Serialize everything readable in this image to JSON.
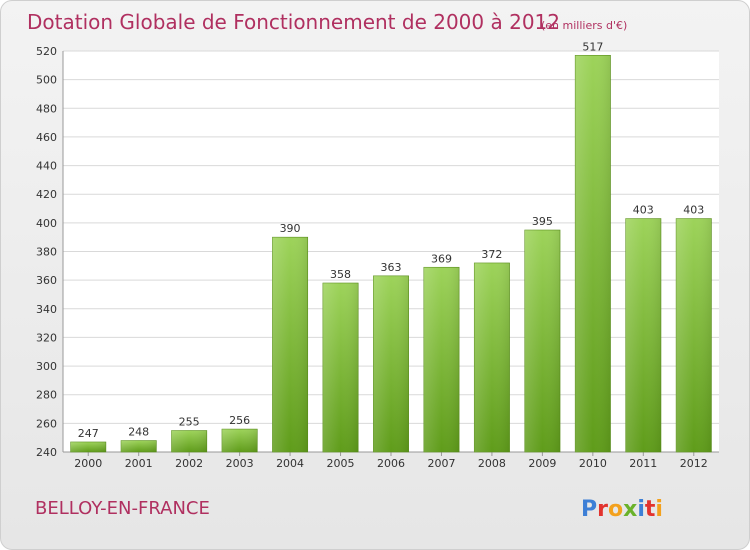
{
  "chart_data": {
    "type": "bar",
    "title": "Dotation Globale de Fonctionnement de 2000 à 2012",
    "subtitle": "(en milliers d'€)",
    "categories": [
      "2000",
      "2001",
      "2002",
      "2003",
      "2004",
      "2005",
      "2006",
      "2007",
      "2008",
      "2009",
      "2010",
      "2011",
      "2012"
    ],
    "values": [
      247,
      248,
      255,
      256,
      390,
      358,
      363,
      369,
      372,
      395,
      517,
      403,
      403
    ],
    "ylim": [
      240,
      520
    ],
    "yticks": [
      240,
      260,
      280,
      300,
      320,
      340,
      360,
      380,
      400,
      420,
      440,
      460,
      480,
      500,
      520
    ],
    "grid": true,
    "bar_color_top": "#9dd35a",
    "bar_color_bottom": "#5f9c1a"
  },
  "footer": {
    "town": "BELLOY-EN-FRANCE",
    "logo": "Proxiti",
    "logo_letter_colors": [
      "#3d7fd6",
      "#e2332e",
      "#f3a11d",
      "#6ab22a",
      "#3d7fd6",
      "#e2332e",
      "#f3a11d"
    ]
  }
}
